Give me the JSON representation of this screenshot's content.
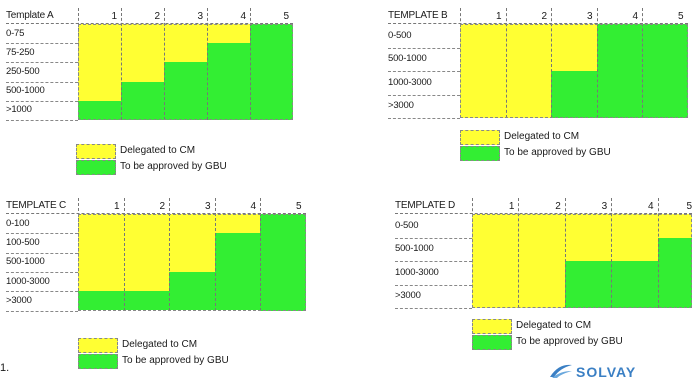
{
  "legend": {
    "delegated": "Delegated to CM",
    "approved": "To be approved by GBU"
  },
  "colors": {
    "yellow": "#ffff33",
    "green": "#33ee33"
  },
  "templates": [
    {
      "title": "Template A",
      "columns": [
        "1",
        "2",
        "3",
        "4",
        "5"
      ],
      "rows": [
        "0-75",
        "75-250",
        "250-500",
        "500-1000",
        ">1000"
      ],
      "green_rows_from_bottom": [
        1,
        2,
        3,
        4,
        5
      ]
    },
    {
      "title": "TEMPLATE B",
      "columns": [
        "1",
        "2",
        "3",
        "4",
        "5"
      ],
      "rows": [
        "0-500",
        "500-1000",
        "1000-3000",
        ">3000"
      ],
      "green_rows_from_bottom": [
        0,
        0,
        2,
        4,
        4
      ]
    },
    {
      "title": "TEMPLATE C",
      "columns": [
        "1",
        "2",
        "3",
        "4",
        "5"
      ],
      "rows": [
        "0-100",
        "100-500",
        "500-1000",
        "1000-3000",
        ">3000"
      ],
      "green_rows_from_bottom": [
        1,
        1,
        2,
        4,
        5
      ]
    },
    {
      "title": "TEMPLATE D",
      "columns": [
        "1",
        "2",
        "3",
        "4",
        "5"
      ],
      "rows": [
        "0-500",
        "500-1000",
        "1000-3000",
        ">3000"
      ],
      "green_rows_from_bottom": [
        0,
        0,
        2,
        2,
        3
      ]
    }
  ],
  "footer": {
    "page_marker": "1.",
    "logo_text": "SOLVAY",
    "logo_icon": "solvay-swoosh-icon"
  }
}
